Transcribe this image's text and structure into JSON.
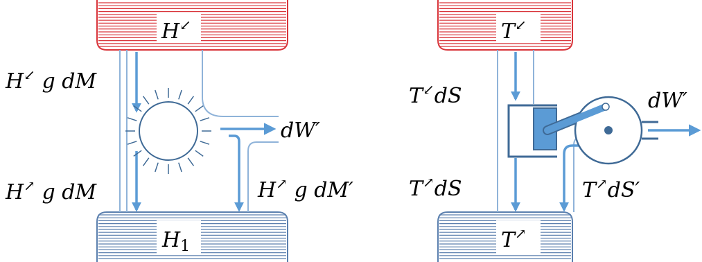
{
  "colors": {
    "hot": "#d9343a",
    "cold": "#5a7fae",
    "flow": "#5b9bd5",
    "pipe": "#8fb3d9",
    "machine": "#3f6a96",
    "piston": "#5b9bd5",
    "text": "#000000"
  },
  "icons": {
    "water_wheel": "sun-wheel",
    "piston_engine": "piston-crank"
  },
  "water_wheel": {
    "upper_reservoir": {
      "symbol": "H",
      "mark": "↙"
    },
    "lower_reservoir": {
      "symbol": "H",
      "subscript": "1"
    },
    "in_flow": {
      "symbol": "H",
      "mark": "↙",
      "rest": " g dM"
    },
    "out_flow": {
      "symbol": "H",
      "mark": "↗",
      "rest": " g dM"
    },
    "out_flow_prime": {
      "symbol": "H",
      "mark": "↗",
      "rest": " g dM′"
    },
    "work": "dW′"
  },
  "heat_engine": {
    "upper_reservoir": {
      "symbol": "T",
      "mark": "↙"
    },
    "lower_reservoir": {
      "symbol": "T",
      "mark": "↗"
    },
    "in_flow": {
      "symbol": "T",
      "mark": "↙",
      "rest": "dS"
    },
    "out_flow": {
      "symbol": "T",
      "mark": "↗",
      "rest": "dS"
    },
    "out_flow_prime": {
      "symbol": "T",
      "mark": "↗",
      "rest": "dS′"
    },
    "work": "dW′"
  }
}
